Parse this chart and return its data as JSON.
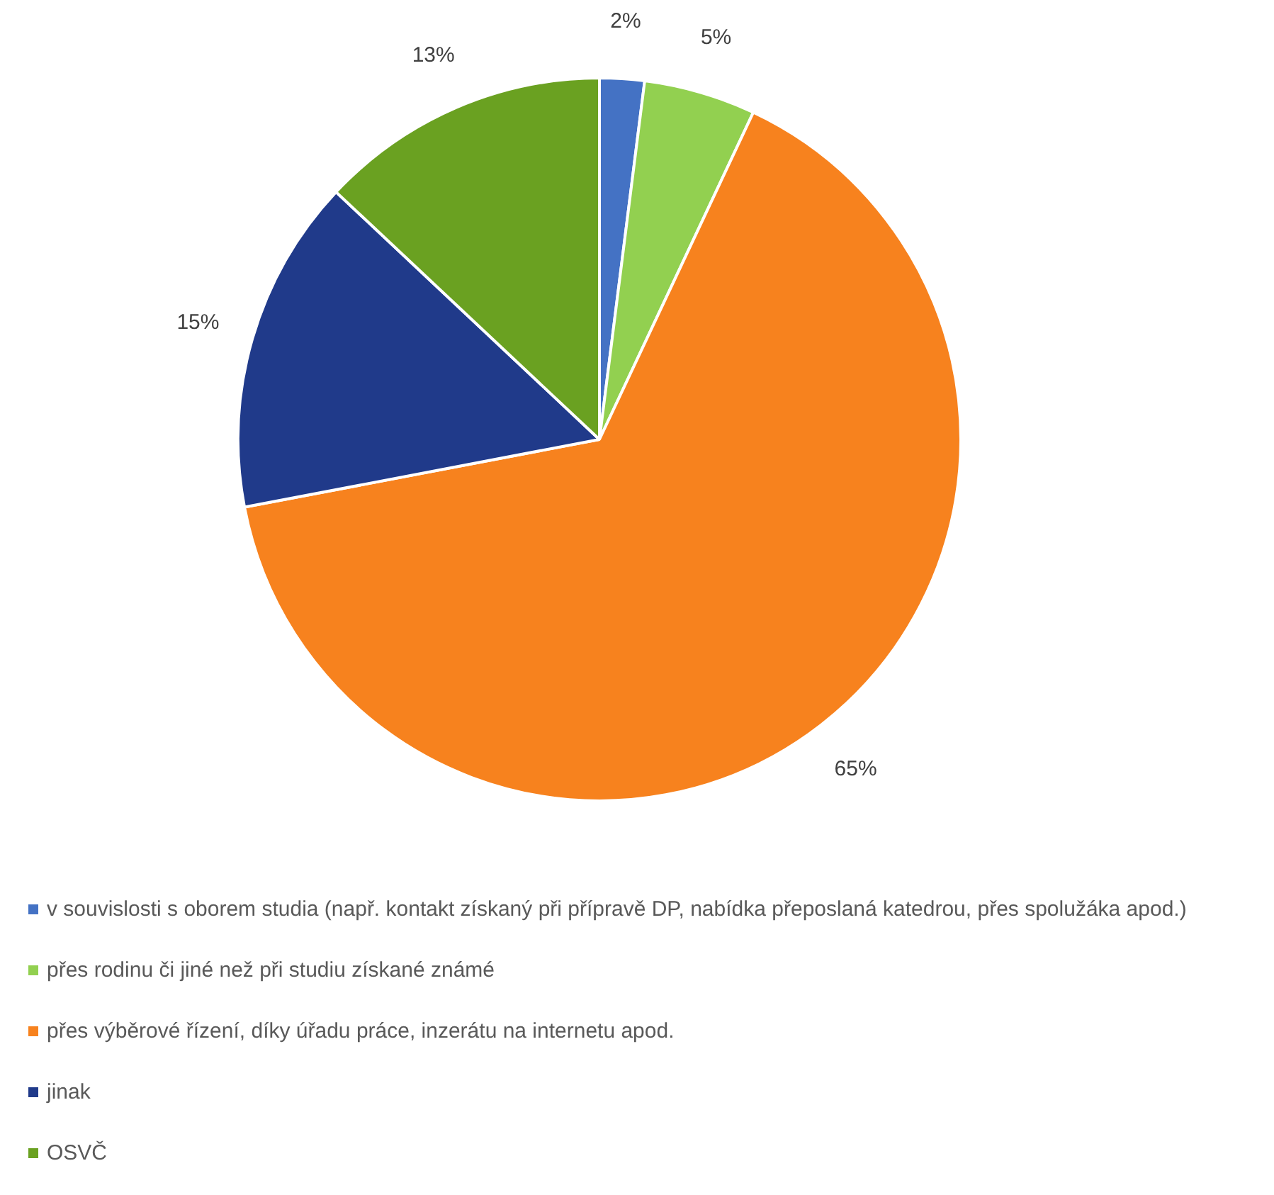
{
  "chart_data": {
    "type": "pie",
    "categories": [
      "v souvislosti s oborem studia (např. kontakt získaný při přípravě DP, nabídka přeposlaná katedrou, přes spolužáka apod.)",
      "přes rodinu či jiné než při studiu získané známé",
      "přes výběrové řízení, díky úřadu práce, inzerátu na internetu apod.",
      "jinak",
      "OSVČ"
    ],
    "values": [
      2,
      5,
      65,
      15,
      13
    ],
    "value_labels": [
      "2%",
      "5%",
      "65%",
      "15%",
      "13%"
    ],
    "colors": [
      "#4472c4",
      "#92d050",
      "#f7821e",
      "#203a8a",
      "#6aa121"
    ],
    "legend": "bottom"
  }
}
